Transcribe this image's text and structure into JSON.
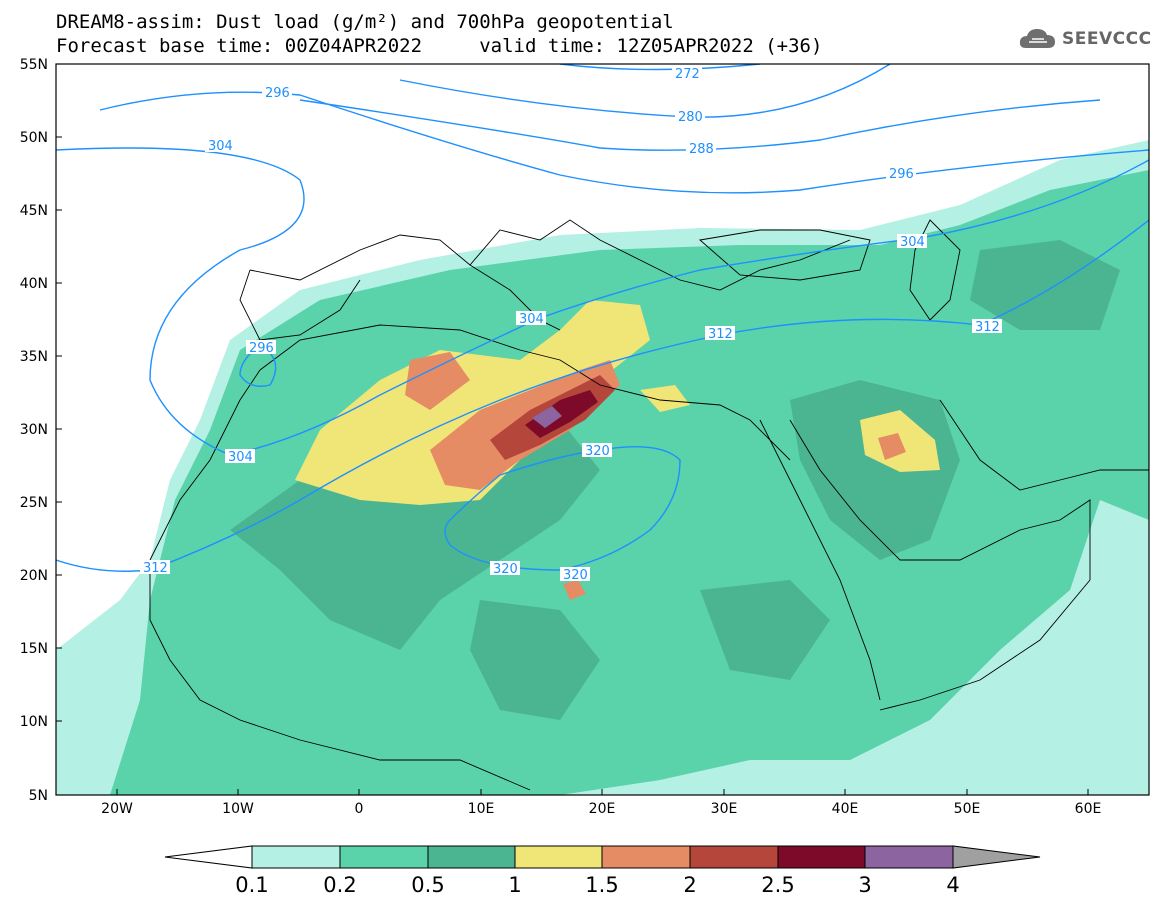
{
  "title": {
    "line1": "DREAM8-assim: Dust load (g/m²) and 700hPa geopotential",
    "line2": "Forecast base time: 00Z04APR2022     valid time: 12Z05APR2022 (+36)"
  },
  "logo": {
    "text": "SEEVCCC",
    "icon": "cloud-logo-icon"
  },
  "map": {
    "lat_ticks": [
      "55N",
      "50N",
      "45N",
      "40N",
      "35N",
      "30N",
      "25N",
      "20N",
      "15N",
      "10N",
      "5N"
    ],
    "lon_ticks": [
      "20W",
      "10W",
      "0",
      "10E",
      "20E",
      "30E",
      "40E",
      "50E",
      "60E"
    ],
    "lon_range": [
      -25,
      65
    ],
    "lat_range": [
      5,
      55
    ]
  },
  "contours": {
    "color": "#1e90ff",
    "labels": [
      "272",
      "280",
      "288",
      "296",
      "296",
      "296",
      "304",
      "304",
      "304",
      "304",
      "312",
      "312",
      "312",
      "320",
      "320",
      "320"
    ]
  },
  "colorbar": {
    "labels": [
      "0.1",
      "0.2",
      "0.5",
      "1",
      "1.5",
      "2",
      "2.5",
      "3",
      "4"
    ],
    "colors": [
      "#b4f0e4",
      "#5ad2aa",
      "#4bb491",
      "#f0e678",
      "#e68c64",
      "#b4463c",
      "#7d0a28",
      "#8c64a0",
      "#a0a0a0"
    ],
    "under_color": "#ffffff",
    "over_color": "#a0a0a0"
  }
}
